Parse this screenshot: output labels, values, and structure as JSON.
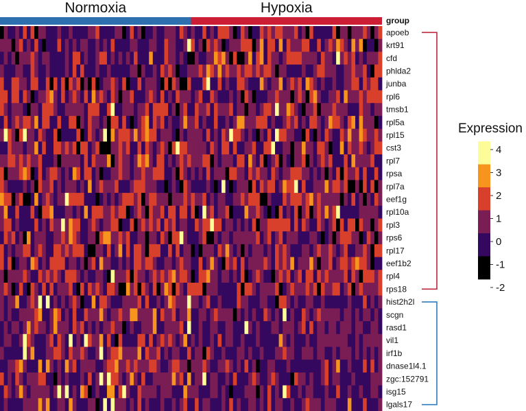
{
  "chart_data": {
    "type": "heatmap",
    "title": "",
    "group_label": "group",
    "groups": [
      {
        "name": "Normoxia",
        "color": "#2e6fb0"
      },
      {
        "name": "Hypoxia",
        "color": "#cc1f36"
      }
    ],
    "genes": [
      "apoeb",
      "krt91",
      "cfd",
      "phlda2",
      "junba",
      "rpl6",
      "tmsb1",
      "rpl5a",
      "rpl15",
      "cst3",
      "rpl7",
      "rpsa",
      "rpl7a",
      "eef1g",
      "rpl10a",
      "rpl3",
      "rps6",
      "rpl17",
      "eef1b2",
      "rpl4",
      "rps18",
      "hist2h2l",
      "scgn",
      "rasd1",
      "vil1",
      "irf1b",
      "dnase1l4.1",
      "zgc:152791",
      "isg15",
      "lgals17"
    ],
    "gene_clusters": [
      {
        "from": "apoeb",
        "to": "rps18",
        "color": "#c0243a"
      },
      {
        "from": "hist2h2l",
        "to": "lgals17",
        "color": "#2e7bbf"
      }
    ],
    "legend": {
      "title": "Expression",
      "ticks": [
        "4",
        "3",
        "2",
        "1",
        "0",
        "-1",
        "-2"
      ],
      "colors": [
        "#fcfd99",
        "#f7941d",
        "#d9402b",
        "#7a1d55",
        "#34085f",
        "#000000"
      ]
    },
    "value_range": [
      -2,
      4
    ],
    "cells_per_group": 50
  }
}
